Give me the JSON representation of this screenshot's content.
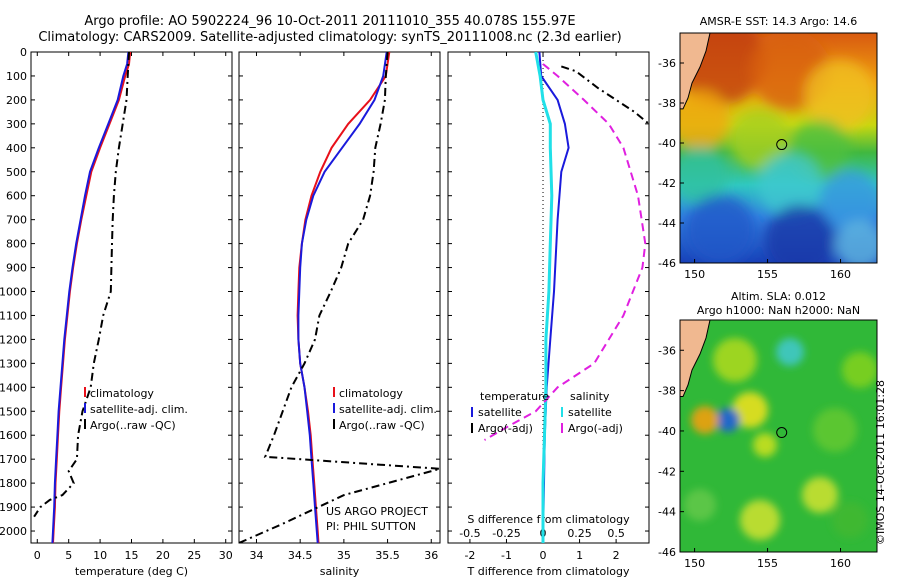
{
  "title_line1": "Argo profile: AO 5902224_96 10-Oct-2011 20111010_355 40.078S 155.97E",
  "title_line2": "Climatology: CARS2009. Satellite-adjusted climatology: synTS_20111008.nc (2.3d earlier)",
  "copyright": "©IMOS 14-Oct-2011 16:01:28",
  "colors": {
    "climatology": "#e8101a",
    "satellite": "#1a1adc",
    "argo": "#000000",
    "salinity_sat": "#20e0e8",
    "salinity_argo": "#e020e0"
  },
  "chart_data": [
    {
      "id": "temperature",
      "type": "line",
      "xlabel": "temperature (deg C)",
      "ylabel": "",
      "xlim": [
        -1,
        31
      ],
      "ylim": [
        2050,
        0
      ],
      "xticks": [
        "0",
        "5",
        "10",
        "15",
        "20",
        "25",
        "30"
      ],
      "yticks": [
        "0",
        "100",
        "200",
        "300",
        "400",
        "500",
        "600",
        "700",
        "800",
        "900",
        "1000",
        "1100",
        "1200",
        "1300",
        "1400",
        "1500",
        "1600",
        "1700",
        "1800",
        "1900",
        "2000"
      ],
      "legend": [
        "climatology",
        "satellite-adj. clim.",
        "Argo(..raw -QC)"
      ],
      "series": [
        {
          "name": "climatology",
          "points": [
            [
              14.8,
              0
            ],
            [
              14.6,
              50
            ],
            [
              14.0,
              100
            ],
            [
              13.0,
              200
            ],
            [
              11.5,
              300
            ],
            [
              10.0,
              400
            ],
            [
              8.6,
              500
            ],
            [
              7.8,
              600
            ],
            [
              7.0,
              700
            ],
            [
              6.3,
              800
            ],
            [
              5.7,
              900
            ],
            [
              5.2,
              1000
            ],
            [
              4.8,
              1100
            ],
            [
              4.4,
              1200
            ],
            [
              4.1,
              1300
            ],
            [
              3.8,
              1400
            ],
            [
              3.5,
              1500
            ],
            [
              3.3,
              1600
            ],
            [
              3.1,
              1700
            ],
            [
              2.9,
              1800
            ],
            [
              2.8,
              1900
            ],
            [
              2.6,
              2000
            ],
            [
              2.5,
              2050
            ]
          ]
        },
        {
          "name": "satellite-adj. clim.",
          "points": [
            [
              14.5,
              0
            ],
            [
              14.3,
              50
            ],
            [
              13.7,
              100
            ],
            [
              12.8,
              200
            ],
            [
              11.3,
              300
            ],
            [
              9.8,
              400
            ],
            [
              8.4,
              500
            ],
            [
              7.6,
              600
            ],
            [
              6.9,
              700
            ],
            [
              6.2,
              800
            ],
            [
              5.6,
              900
            ],
            [
              5.1,
              1000
            ],
            [
              4.7,
              1100
            ],
            [
              4.3,
              1200
            ],
            [
              4.0,
              1300
            ],
            [
              3.7,
              1400
            ],
            [
              3.4,
              1500
            ],
            [
              3.2,
              1600
            ],
            [
              3.0,
              1700
            ],
            [
              2.8,
              1800
            ],
            [
              2.7,
              1900
            ],
            [
              2.5,
              2000
            ],
            [
              2.4,
              2050
            ]
          ]
        },
        {
          "name": "Argo(..raw -QC)",
          "points": [
            [
              14.6,
              0
            ],
            [
              14.4,
              100
            ],
            [
              14.2,
              200
            ],
            [
              13.6,
              300
            ],
            [
              13.0,
              400
            ],
            [
              12.5,
              500
            ],
            [
              12.2,
              600
            ],
            [
              12.0,
              700
            ],
            [
              11.9,
              800
            ],
            [
              11.8,
              900
            ],
            [
              11.7,
              1000
            ],
            [
              10.5,
              1100
            ],
            [
              9.8,
              1200
            ],
            [
              9.0,
              1300
            ],
            [
              8.5,
              1400
            ],
            [
              7.2,
              1500
            ],
            [
              6.5,
              1600
            ],
            [
              6.3,
              1700
            ],
            [
              5.0,
              1750
            ],
            [
              5.8,
              1800
            ],
            [
              4.0,
              1850
            ],
            [
              2.0,
              1870
            ],
            [
              0.5,
              1900
            ],
            [
              -0.5,
              1940
            ]
          ]
        }
      ]
    },
    {
      "id": "salinity",
      "type": "line",
      "xlabel": "salinity",
      "ylabel": "",
      "xlim": [
        33.8,
        36.1
      ],
      "ylim": [
        2050,
        0
      ],
      "xticks": [
        "34",
        "34.5",
        "35",
        "35.5",
        "36"
      ],
      "legend": [
        "climatology",
        "satellite-adj. clim.",
        "Argo(..raw -QC)"
      ],
      "series": [
        {
          "name": "climatology",
          "points": [
            [
              35.52,
              0
            ],
            [
              35.48,
              100
            ],
            [
              35.3,
              200
            ],
            [
              35.05,
              300
            ],
            [
              34.86,
              400
            ],
            [
              34.73,
              500
            ],
            [
              34.63,
              600
            ],
            [
              34.56,
              700
            ],
            [
              34.52,
              800
            ],
            [
              34.49,
              900
            ],
            [
              34.48,
              1000
            ],
            [
              34.47,
              1100
            ],
            [
              34.48,
              1200
            ],
            [
              34.5,
              1300
            ],
            [
              34.55,
              1400
            ],
            [
              34.59,
              1500
            ],
            [
              34.62,
              1600
            ],
            [
              34.64,
              1700
            ],
            [
              34.66,
              1800
            ],
            [
              34.68,
              1900
            ],
            [
              34.7,
              2000
            ],
            [
              34.71,
              2050
            ]
          ]
        },
        {
          "name": "satellite-adj. clim.",
          "points": [
            [
              35.49,
              0
            ],
            [
              35.45,
              100
            ],
            [
              35.35,
              200
            ],
            [
              35.18,
              300
            ],
            [
              34.98,
              400
            ],
            [
              34.78,
              500
            ],
            [
              34.65,
              600
            ],
            [
              34.57,
              700
            ],
            [
              34.52,
              800
            ],
            [
              34.5,
              900
            ],
            [
              34.49,
              1000
            ],
            [
              34.48,
              1100
            ],
            [
              34.48,
              1200
            ],
            [
              34.5,
              1300
            ],
            [
              34.55,
              1400
            ],
            [
              34.58,
              1500
            ],
            [
              34.61,
              1600
            ],
            [
              34.63,
              1700
            ],
            [
              34.65,
              1800
            ],
            [
              34.67,
              1900
            ],
            [
              34.69,
              2000
            ],
            [
              34.7,
              2050
            ]
          ]
        },
        {
          "name": "Argo(..raw -QC)",
          "points": [
            [
              35.5,
              0
            ],
            [
              35.48,
              100
            ],
            [
              35.47,
              200
            ],
            [
              35.42,
              300
            ],
            [
              35.36,
              400
            ],
            [
              35.34,
              500
            ],
            [
              35.3,
              600
            ],
            [
              35.22,
              700
            ],
            [
              35.05,
              800
            ],
            [
              34.97,
              900
            ],
            [
              34.85,
              1000
            ],
            [
              34.72,
              1100
            ],
            [
              34.67,
              1200
            ],
            [
              34.55,
              1300
            ],
            [
              34.4,
              1400
            ],
            [
              34.3,
              1500
            ],
            [
              34.2,
              1600
            ],
            [
              34.1,
              1690
            ],
            [
              36.1,
              1740
            ],
            [
              35.0,
              1850
            ],
            [
              34.3,
              1970
            ],
            [
              33.8,
              2050
            ]
          ]
        }
      ]
    },
    {
      "id": "difference",
      "type": "line",
      "xlabel": "T difference from climatology",
      "x2label": "S difference from climatology",
      "xlim": [
        -2.6,
        2.9
      ],
      "x2lim": [
        -0.65,
        0.725
      ],
      "ylim": [
        2050,
        0
      ],
      "xticks": [
        "-2",
        "-1",
        "0",
        "1",
        "2"
      ],
      "x2ticks": [
        "-0.5",
        "-0.25",
        "0",
        "0.25",
        "0.5"
      ],
      "legend_titles": [
        "temperature",
        "salinity"
      ],
      "legend": [
        "satellite",
        "Argo(-adj)",
        "satellite",
        "Argo(-adj)"
      ],
      "series": [
        {
          "name": "temperature satellite",
          "points": [
            [
              -0.1,
              0
            ],
            [
              -0.05,
              100
            ],
            [
              0.4,
              200
            ],
            [
              0.6,
              300
            ],
            [
              0.7,
              400
            ],
            [
              0.5,
              500
            ],
            [
              0.4,
              700
            ],
            [
              0.3,
              1000
            ],
            [
              0.2,
              1200
            ],
            [
              0.1,
              1400
            ],
            [
              0.05,
              1600
            ],
            [
              0,
              2050
            ]
          ]
        },
        {
          "name": "temperature Argo(-adj)",
          "points": [
            [
              0.5,
              60
            ],
            [
              0.9,
              80
            ],
            [
              1.5,
              150
            ],
            [
              2.5,
              250
            ],
            [
              2.9,
              300
            ]
          ]
        },
        {
          "name": "salinity satellite",
          "points": [
            [
              -0.05,
              0
            ],
            [
              -0.02,
              100
            ],
            [
              0,
              200
            ],
            [
              0.05,
              300
            ],
            [
              0.05,
              400
            ],
            [
              0.06,
              600
            ],
            [
              0.05,
              800
            ],
            [
              0.04,
              1000
            ],
            [
              0.02,
              1200
            ],
            [
              0.02,
              1400
            ],
            [
              0.01,
              1600
            ],
            [
              0,
              1800
            ],
            [
              0,
              2050
            ]
          ]
        },
        {
          "name": "salinity Argo(-adj)",
          "points": [
            [
              0,
              50
            ],
            [
              0.1,
              100
            ],
            [
              0.28,
              200
            ],
            [
              0.45,
              300
            ],
            [
              0.55,
              400
            ],
            [
              0.65,
              600
            ],
            [
              0.7,
              800
            ],
            [
              0.68,
              900
            ],
            [
              0.55,
              1100
            ],
            [
              0.35,
              1300
            ],
            [
              0.1,
              1400
            ],
            [
              -0.05,
              1500
            ],
            [
              -0.2,
              1550
            ],
            [
              -0.4,
              1620
            ]
          ]
        }
      ]
    },
    {
      "id": "sst-map",
      "type": "heatmap",
      "title": "AMSR-E SST: 14.3 Argo: 14.6",
      "xlim": [
        149,
        162.5
      ],
      "ylim": [
        -46,
        -34.5
      ],
      "xticks": [
        "150",
        "155",
        "160"
      ],
      "yticks": [
        "-36",
        "-38",
        "-40",
        "-42",
        "-44",
        "-46"
      ],
      "marker": [
        155.97,
        -40.078
      ]
    },
    {
      "id": "sla-map",
      "type": "heatmap",
      "title": "Altim. SLA: 0.012",
      "title2": "Argo h1000: NaN h2000: NaN",
      "xlim": [
        149,
        162.5
      ],
      "ylim": [
        -46,
        -34.5
      ],
      "xticks": [
        "150",
        "155",
        "160"
      ],
      "yticks": [
        "-36",
        "-38",
        "-40",
        "-42",
        "-44",
        "-46"
      ],
      "marker": [
        155.97,
        -40.078
      ]
    }
  ]
}
